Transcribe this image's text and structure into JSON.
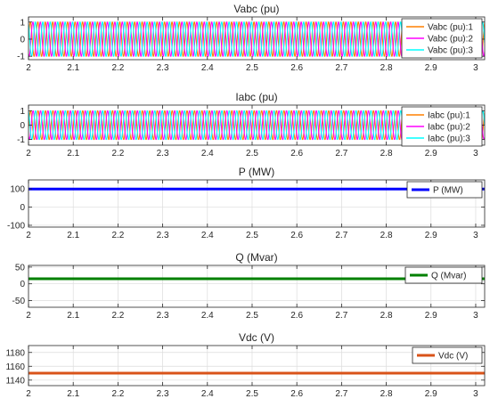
{
  "figure": {
    "background": "#ffffff",
    "axes_color": "#262626",
    "grid_color": "#dcdcdc",
    "plot_background": "#ffffff"
  },
  "chart_data": [
    {
      "type": "line",
      "title": "Vabc (pu)",
      "xlim": [
        2,
        3.02
      ],
      "ylim": [
        -1.2,
        1.3
      ],
      "xticks": [
        2,
        2.1,
        2.2,
        2.3,
        2.4,
        2.5,
        2.6,
        2.7,
        2.8,
        2.9,
        3
      ],
      "xtick_labels": [
        "2",
        "2.1",
        "2.2",
        "2.3",
        "2.4",
        "2.5",
        "2.6",
        "2.7",
        "2.8",
        "2.9",
        "3"
      ],
      "yticks": [
        -1,
        0,
        1
      ],
      "ytick_labels": [
        "-1",
        "0",
        "1"
      ],
      "grid": true,
      "legend_position": "top-right",
      "waveform": {
        "kind": "three-phase-sine",
        "amplitude": 1.0,
        "frequency_hz": 60
      },
      "series": [
        {
          "name": "Vabc (pu):1",
          "color": "#ff8000",
          "phase_deg": 0
        },
        {
          "name": "Vabc (pu):2",
          "color": "#ff00ff",
          "phase_deg": -120
        },
        {
          "name": "Vabc (pu):3",
          "color": "#00ffff",
          "phase_deg": 120
        }
      ]
    },
    {
      "type": "line",
      "title": "Iabc (pu)",
      "xlim": [
        2,
        3.02
      ],
      "ylim": [
        -1.4,
        1.4
      ],
      "xticks": [
        2,
        2.1,
        2.2,
        2.3,
        2.4,
        2.5,
        2.6,
        2.7,
        2.8,
        2.9,
        3
      ],
      "xtick_labels": [
        "2",
        "2.1",
        "2.2",
        "2.3",
        "2.4",
        "2.5",
        "2.6",
        "2.7",
        "2.8",
        "2.9",
        "3"
      ],
      "yticks": [
        -1,
        0,
        1
      ],
      "ytick_labels": [
        "-1",
        "0",
        "1"
      ],
      "grid": true,
      "legend_position": "top-right",
      "waveform": {
        "kind": "three-phase-sine",
        "amplitude": 1.0,
        "frequency_hz": 60
      },
      "series": [
        {
          "name": "Iabc (pu):1",
          "color": "#ff8000",
          "phase_deg": -10
        },
        {
          "name": "Iabc (pu):2",
          "color": "#ff00ff",
          "phase_deg": -130
        },
        {
          "name": "Iabc (pu):3",
          "color": "#00ffff",
          "phase_deg": 110
        }
      ]
    },
    {
      "type": "line",
      "title": "P (MW)",
      "xlim": [
        2,
        3.02
      ],
      "ylim": [
        -110,
        150
      ],
      "xticks": [
        2,
        2.1,
        2.2,
        2.3,
        2.4,
        2.5,
        2.6,
        2.7,
        2.8,
        2.9,
        3
      ],
      "xtick_labels": [
        "2",
        "2.1",
        "2.2",
        "2.3",
        "2.4",
        "2.5",
        "2.6",
        "2.7",
        "2.8",
        "2.9",
        "3"
      ],
      "yticks": [
        -100,
        0,
        100
      ],
      "ytick_labels": [
        "-100",
        "0",
        "100"
      ],
      "grid": true,
      "legend_position": "top-right",
      "series": [
        {
          "name": "P (MW)",
          "color": "#0000ff",
          "value": 100
        }
      ]
    },
    {
      "type": "line",
      "title": "Q (Mvar)",
      "xlim": [
        2,
        3.02
      ],
      "ylim": [
        -70,
        55
      ],
      "xticks": [
        2,
        2.1,
        2.2,
        2.3,
        2.4,
        2.5,
        2.6,
        2.7,
        2.8,
        2.9,
        3
      ],
      "xtick_labels": [
        "2",
        "2.1",
        "2.2",
        "2.3",
        "2.4",
        "2.5",
        "2.6",
        "2.7",
        "2.8",
        "2.9",
        "3"
      ],
      "yticks": [
        -50,
        0,
        50
      ],
      "ytick_labels": [
        "-50",
        "0",
        "50"
      ],
      "grid": true,
      "legend_position": "top-right",
      "series": [
        {
          "name": "Q (Mvar)",
          "color": "#008000",
          "value": 15
        }
      ]
    },
    {
      "type": "line",
      "title": "Vdc (V)",
      "xlim": [
        2,
        3.02
      ],
      "ylim": [
        1132,
        1190
      ],
      "xticks": [
        2,
        2.1,
        2.2,
        2.3,
        2.4,
        2.5,
        2.6,
        2.7,
        2.8,
        2.9,
        3
      ],
      "xtick_labels": [
        "2",
        "2.1",
        "2.2",
        "2.3",
        "2.4",
        "2.5",
        "2.6",
        "2.7",
        "2.8",
        "2.9",
        "3"
      ],
      "yticks": [
        1140,
        1160,
        1180
      ],
      "ytick_labels": [
        "1140",
        "1160",
        "1180"
      ],
      "grid": true,
      "legend_position": "top-right",
      "series": [
        {
          "name": "Vdc (V)",
          "color": "#d95319",
          "value": 1150
        }
      ]
    }
  ]
}
